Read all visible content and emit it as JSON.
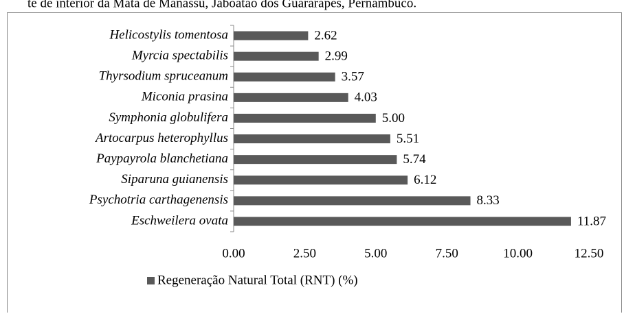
{
  "chart_data": {
    "type": "bar",
    "orientation": "horizontal",
    "caption": "te de interior da Mata de Manassu, Jaboatão dos Guararapes, Pernambuco.",
    "categories": [
      "Helicostylis tomentosa",
      "Myrcia spectabilis",
      "Thyrsodium spruceanum",
      "Miconia prasina",
      "Symphonia globulifera",
      "Artocarpus heterophyllus",
      "Paypayrola blanchetiana",
      "Siparuna guianensis",
      "Psychotria carthagenensis",
      "Eschweilera ovata"
    ],
    "series": [
      {
        "name": "Regeneração Natural Total (RNT) (%)",
        "color": "#595959",
        "values": [
          2.62,
          2.99,
          3.57,
          4.03,
          5.0,
          5.51,
          5.74,
          6.12,
          8.33,
          11.87
        ],
        "value_labels": [
          "2.62",
          "2.99",
          "3.57",
          "4.03",
          "5.00",
          "5.51",
          "5.74",
          "6.12",
          "8.33",
          "11.87"
        ]
      }
    ],
    "xlim": [
      0,
      12.5
    ],
    "xticks": [
      {
        "value": 0,
        "label": "0.00"
      },
      {
        "value": 2.5,
        "label": "2.50"
      },
      {
        "value": 5,
        "label": "5.00"
      },
      {
        "value": 7.5,
        "label": "7.50"
      },
      {
        "value": 10,
        "label": "10.00"
      },
      {
        "value": 12.5,
        "label": "12.50"
      }
    ],
    "legend": "bottom"
  }
}
